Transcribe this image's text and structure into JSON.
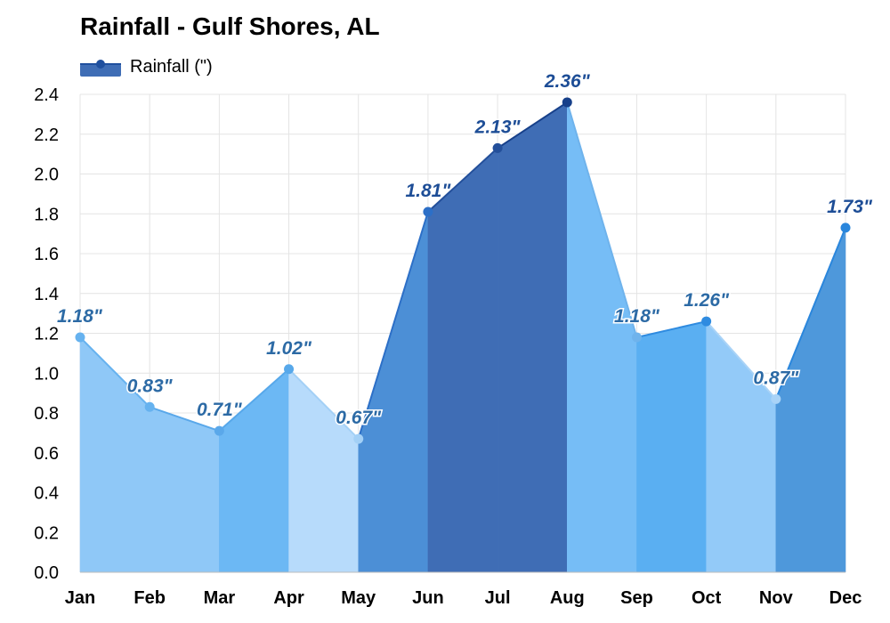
{
  "chart_data": {
    "type": "area",
    "title": "Rainfall - Gulf Shores, AL",
    "legend": [
      "Rainfall (\")"
    ],
    "legend_position": "top-left",
    "categories": [
      "Jan",
      "Feb",
      "Mar",
      "Apr",
      "May",
      "Jun",
      "Jul",
      "Aug",
      "Sep",
      "Oct",
      "Nov",
      "Dec"
    ],
    "series": [
      {
        "name": "Rainfall (\")",
        "values": [
          1.18,
          0.83,
          0.71,
          1.02,
          0.67,
          1.81,
          2.13,
          2.36,
          1.18,
          1.26,
          0.87,
          1.73
        ],
        "labels": [
          "1.18\"",
          "0.83\"",
          "0.71\"",
          "1.02\"",
          "0.67\"",
          "1.81\"",
          "2.13\"",
          "2.36\"",
          "1.18\"",
          "1.26\"",
          "0.87\"",
          "1.73\""
        ]
      }
    ],
    "ylim": [
      0,
      2.4
    ],
    "yticks": [
      "0.0",
      "0.2",
      "0.4",
      "0.6",
      "0.8",
      "1.0",
      "1.2",
      "1.4",
      "1.6",
      "1.8",
      "2.0",
      "2.2",
      "2.4"
    ],
    "xlabel": "",
    "ylabel": "",
    "grid": true,
    "colors": {
      "fills": [
        "#8fc8f7",
        "#8fc8f7",
        "#6cb8f4",
        "#b7dbfb",
        "#4c8fd6",
        "#3f6db5",
        "#3f6db5",
        "#76bdf6",
        "#5aaff2",
        "#93caf8",
        "#4e98db",
        "#4e98db"
      ],
      "markers": [
        "#66b2ef",
        "#66b2ef",
        "#5aa8ea",
        "#57a8ea",
        "#a3d0f6",
        "#2c6fc7",
        "#234f9a",
        "#17408a",
        "#6fb3ec",
        "#2f8be0",
        "#a9d3f7",
        "#2a86dc"
      ],
      "labels": [
        "#2c6aa5",
        "#2c6aa5",
        "#2c6aa5",
        "#2c6aa5",
        "#2c6aa5",
        "#1d4d96",
        "#1d4d96",
        "#1d4d96",
        "#2c6aa5",
        "#2c6aa5",
        "#2c6aa5",
        "#1d4d96"
      ],
      "grid": "#e4e4e4",
      "legend_fill": "#3f6db5",
      "legend_marker": "#1f4f9e"
    }
  }
}
